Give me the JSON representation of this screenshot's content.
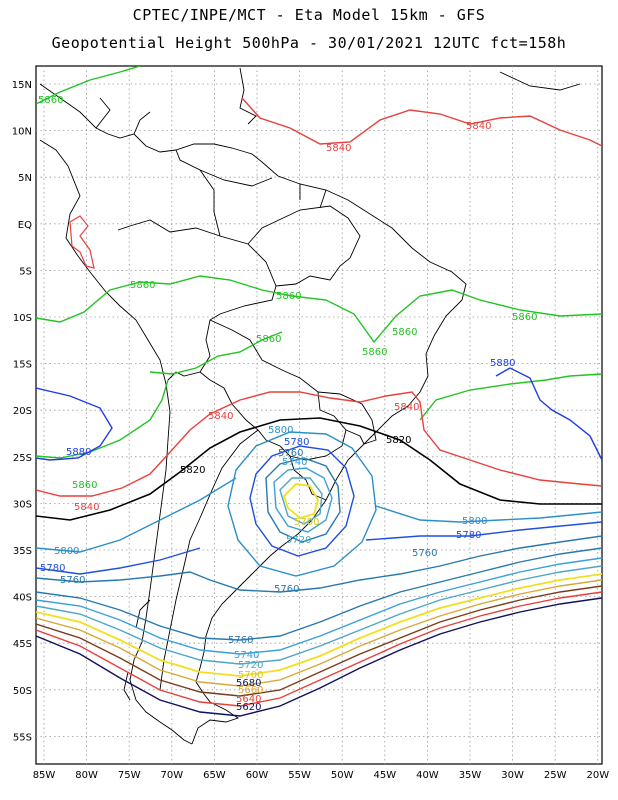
{
  "title_line1": "CPTEC/INPE/MCT -  Eta Model 15km - GFS",
  "title_line2": "Geopotential Height 500hPa - 30/01/2021 12UTC fct=158h",
  "lat_labels": [
    "15N",
    "10N",
    "5N",
    "EQ",
    "5S",
    "10S",
    "15S",
    "20S",
    "25S",
    "30S",
    "35S",
    "40S",
    "45S",
    "50S",
    "55S"
  ],
  "lon_labels": [
    "85W",
    "80W",
    "75W",
    "70W",
    "65W",
    "60W",
    "55W",
    "50W",
    "45W",
    "40W",
    "35W",
    "30W",
    "25W",
    "20W"
  ],
  "colors": {
    "c5840": "#e8403c",
    "c5860": "#22c322",
    "c5880": "#1e3ce6",
    "c5820": "#000000",
    "c5800": "#2b8fc8",
    "c5780": "#1f4fe0",
    "c5760": "#2878b0",
    "c5740": "#3aa0d8",
    "c5720": "#4ea6c6",
    "c5700": "#f0e020",
    "coast": "#000000"
  },
  "contour_labels": {
    "l5860_nw": "5860",
    "l5840_n1": "5840",
    "l5840_n2": "5840",
    "l5860_a": "5860",
    "l5860_b": "5860",
    "l5860_c": "5860",
    "l5860_d": "5860",
    "l5860_e": "5860",
    "l5880_e": "5880",
    "l5840_c": "5840",
    "l5840_d": "5840",
    "l5820_e": "5820",
    "l5880_w": "5880",
    "l5860_w": "5860",
    "l5820_w": "5820",
    "l5840_w": "5840",
    "l5800_a": "5800",
    "l5780_a": "5780",
    "l5760_a": "5760",
    "l5740_a": "5740",
    "l5700": "5700",
    "l5720_a": "5720",
    "l5800_e": "5800",
    "l5780_e": "5780",
    "l5760_e": "5760",
    "l5800_w": "5800",
    "l5780_w": "5780",
    "l5760_w": "5760",
    "l5760_b": "5760",
    "l5760_c": "5760",
    "l5740_b": "5740",
    "l5720_b": "5720",
    "l5700_b": "5700",
    "l5680": "5680",
    "l5660": "5660",
    "l5640": "5640",
    "l5620": "5620"
  }
}
